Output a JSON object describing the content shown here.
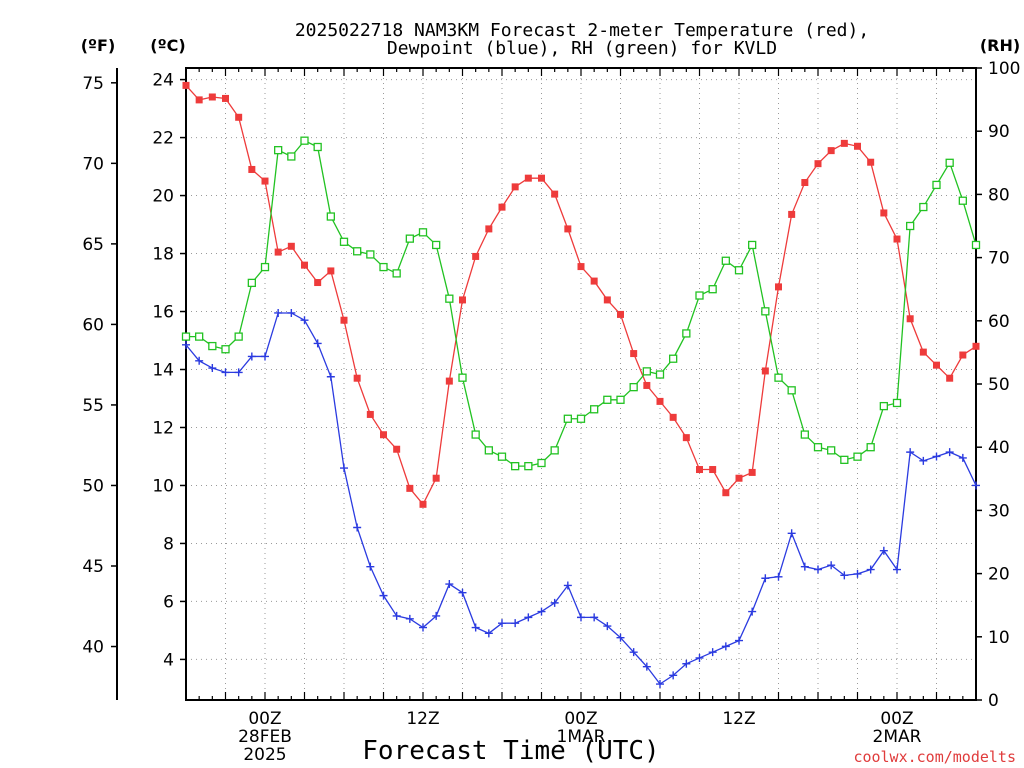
{
  "title_line1": "2025022718 NAM3KM Forecast 2-meter Temperature (red),",
  "title_line2": "Dewpoint (blue), RH (green) for KVLD",
  "unit_f": "(ºF)",
  "unit_c": "(ºC)",
  "unit_rh": "(RH)",
  "xlabel": "Forecast Time (UTC)",
  "watermark": "coolwx.com/modelts",
  "chart_data": {
    "type": "line",
    "title": "2025022718 NAM3KM Forecast 2-meter Temperature (red), Dewpoint (blue), RH (green) for KVLD",
    "xlabel": "Forecast Time (UTC)",
    "x_hours": [
      0,
      1,
      2,
      3,
      4,
      5,
      6,
      7,
      8,
      9,
      10,
      11,
      12,
      13,
      14,
      15,
      16,
      17,
      18,
      19,
      20,
      21,
      22,
      23,
      24,
      25,
      26,
      27,
      28,
      29,
      30,
      31,
      32,
      33,
      34,
      35,
      36,
      37,
      38,
      39,
      40,
      41,
      42,
      43,
      44,
      45,
      46,
      47,
      48,
      49,
      50,
      51,
      52,
      53,
      54,
      55,
      56,
      57,
      58,
      59,
      60
    ],
    "x_unit": "hours after 2025-02-27 18Z",
    "x_range": [
      0,
      60
    ],
    "x_ticks": [
      {
        "label": [
          "00Z",
          "28FEB",
          "2025"
        ],
        "hour": 6
      },
      {
        "label": [
          "12Z"
        ],
        "hour": 18
      },
      {
        "label": [
          "00Z",
          "1MAR"
        ],
        "hour": 30
      },
      {
        "label": [
          "12Z"
        ],
        "hour": 42
      },
      {
        "label": [
          "00Z",
          "2MAR"
        ],
        "hour": 54
      }
    ],
    "left_axis_c": {
      "range": [
        2.6,
        24.4
      ],
      "ticks": [
        4,
        6,
        8,
        10,
        12,
        14,
        16,
        18,
        20,
        22,
        24
      ]
    },
    "left_axis_f": {
      "ticks": [
        40,
        45,
        50,
        55,
        60,
        65,
        70,
        75
      ]
    },
    "right_axis_rh": {
      "range": [
        0,
        100
      ],
      "ticks": [
        0,
        10,
        20,
        30,
        40,
        50,
        60,
        70,
        80,
        90,
        100
      ]
    },
    "grid": true,
    "series": [
      {
        "name": "Temperature",
        "color": "#ee3b3b",
        "marker": "filled-square",
        "axis": "celsius",
        "values": [
          23.8,
          23.3,
          23.4,
          23.35,
          22.7,
          20.9,
          20.5,
          18.05,
          18.25,
          17.6,
          17.0,
          17.4,
          15.7,
          13.7,
          12.45,
          11.75,
          11.25,
          9.9,
          9.35,
          10.25,
          13.6,
          16.4,
          17.9,
          18.85,
          19.6,
          20.3,
          20.6,
          20.6,
          20.05,
          18.85,
          17.55,
          17.05,
          16.4,
          15.9,
          14.55,
          13.45,
          12.9,
          12.35,
          11.65,
          10.55,
          10.55,
          9.75,
          10.25,
          10.45,
          13.95,
          16.85,
          19.35,
          20.45,
          21.1,
          21.55,
          21.8,
          21.7,
          21.15,
          19.4,
          18.5,
          15.75,
          14.6,
          14.15,
          13.7,
          14.5,
          14.8
        ]
      },
      {
        "name": "Dewpoint",
        "color": "#2b3be0",
        "marker": "plus",
        "axis": "celsius",
        "values": [
          14.85,
          14.3,
          14.05,
          13.9,
          13.9,
          14.45,
          14.45,
          15.95,
          15.95,
          15.7,
          14.9,
          13.75,
          10.6,
          8.55,
          7.2,
          6.2,
          5.5,
          5.4,
          5.1,
          5.5,
          6.6,
          6.3,
          5.1,
          4.9,
          5.25,
          5.25,
          5.45,
          5.65,
          5.95,
          6.55,
          5.45,
          5.45,
          5.15,
          4.75,
          4.25,
          3.75,
          3.15,
          3.45,
          3.85,
          4.05,
          4.25,
          4.45,
          4.65,
          5.65,
          6.8,
          6.85,
          8.35,
          7.2,
          7.1,
          7.25,
          6.9,
          6.95,
          7.1,
          7.75,
          7.1,
          11.15,
          10.85,
          11.0,
          11.15,
          10.95,
          10.0
        ]
      },
      {
        "name": "RH",
        "color": "#22c222",
        "marker": "open-square",
        "axis": "rh",
        "values": [
          57.5,
          57.5,
          56.0,
          55.5,
          57.5,
          66.0,
          68.5,
          87.0,
          86.0,
          88.5,
          87.5,
          76.5,
          72.5,
          71.0,
          70.5,
          68.5,
          67.5,
          73.0,
          74.0,
          72.0,
          63.5,
          51.0,
          42.0,
          39.5,
          38.5,
          37.0,
          37.0,
          37.5,
          39.5,
          44.5,
          44.5,
          46.0,
          47.5,
          47.5,
          49.5,
          52.0,
          51.5,
          54.0,
          58.0,
          64.0,
          65.0,
          69.5,
          68.0,
          72.0,
          61.5,
          51.0,
          49.0,
          42.0,
          40.0,
          39.5,
          38.0,
          38.5,
          40.0,
          46.5,
          47.0,
          75.0,
          78.0,
          81.5,
          85.0,
          79.0,
          72.0
        ]
      }
    ]
  }
}
